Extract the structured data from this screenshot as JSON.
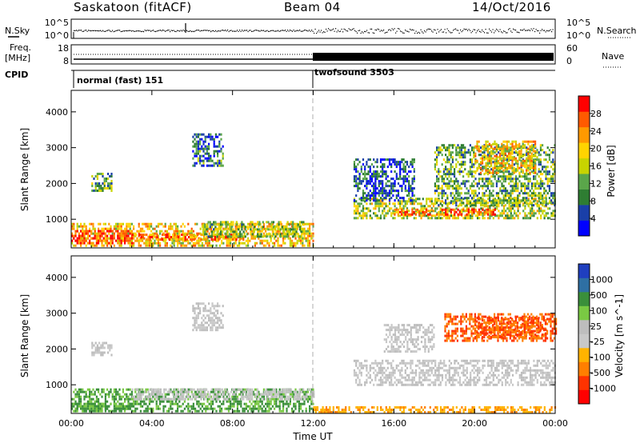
{
  "header": {
    "station": "Saskatoon (fitACF)",
    "beam": "Beam 04",
    "date": "14/Oct/2016"
  },
  "noise_panel": {
    "left_label": "N.Sky",
    "left_ticks": [
      "10^5",
      "10^0"
    ],
    "right_ticks": [
      "10^5",
      "10^0"
    ],
    "right_label": "N.Search"
  },
  "freq_panel": {
    "left_label_1": "Freq.",
    "left_label_2": "[MHz]",
    "left_ticks": [
      "18",
      "8"
    ],
    "right_ticks": [
      "60",
      "0"
    ],
    "right_label": "Nave"
  },
  "cpid": {
    "label": "CPID",
    "modes": [
      {
        "name": "normal (fast) 151",
        "start_hour": 0
      },
      {
        "name": "twofsound 3503",
        "start_hour": 12
      }
    ]
  },
  "colors": {
    "power_scale": [
      "#0000ff",
      "#1a3fa8",
      "#2e7d32",
      "#5aa64a",
      "#c8d400",
      "#ffd400",
      "#ff9900",
      "#ff5a00",
      "#ff0000"
    ],
    "velocity_scale": [
      "#1f3fbf",
      "#2e6fa3",
      "#3a8f3a",
      "#7ac943",
      "#bdbdbd",
      "#c8c8c8",
      "#ffb300",
      "#ff7f00",
      "#ff3300",
      "#ff0000"
    ]
  },
  "chart_data": [
    {
      "type": "heatmap",
      "name": "power",
      "ylabel": "Slant Range [km]",
      "xlabel": "Time UT",
      "x_ticks": [
        "00:00",
        "04:00",
        "08:00",
        "12:00",
        "16:00",
        "20:00",
        "00:00"
      ],
      "x_range_hours": [
        0,
        24
      ],
      "y_ticks": [
        1000,
        2000,
        3000,
        4000
      ],
      "ylim": [
        200,
        4600
      ],
      "colorbar": {
        "label": "Power [dB]",
        "ticks": [
          4,
          8,
          12,
          16,
          20,
          24,
          28
        ],
        "range": [
          0,
          32
        ]
      },
      "regions": [
        {
          "t0": 0.0,
          "t1": 12.0,
          "r0": 250,
          "r1": 900,
          "level": 20
        },
        {
          "t0": 0.0,
          "t1": 3.0,
          "r0": 300,
          "r1": 700,
          "level": 28
        },
        {
          "t0": 3.0,
          "t1": 8.5,
          "r0": 400,
          "r1": 600,
          "level": 24
        },
        {
          "t0": 6.5,
          "t1": 11.5,
          "r0": 500,
          "r1": 950,
          "level": 14
        },
        {
          "t0": 1.0,
          "t1": 2.0,
          "r0": 1800,
          "r1": 2300,
          "level": 12
        },
        {
          "t0": 6.0,
          "t1": 7.5,
          "r0": 2500,
          "r1": 3400,
          "level": 8
        },
        {
          "t0": 14.0,
          "t1": 24.0,
          "r0": 1000,
          "r1": 1600,
          "level": 16
        },
        {
          "t0": 16.0,
          "t1": 21.0,
          "r0": 1100,
          "r1": 1300,
          "level": 26
        },
        {
          "t0": 18.0,
          "t1": 24.0,
          "r0": 1400,
          "r1": 3100,
          "level": 12
        },
        {
          "t0": 20.0,
          "t1": 23.0,
          "r0": 2300,
          "r1": 3200,
          "level": 20
        },
        {
          "t0": 14.0,
          "t1": 17.0,
          "r0": 1500,
          "r1": 2700,
          "level": 6
        }
      ]
    },
    {
      "type": "heatmap",
      "name": "velocity",
      "ylabel": "Slant Range [km]",
      "xlabel": "Time UT",
      "x_ticks": [
        "00:00",
        "04:00",
        "08:00",
        "12:00",
        "16:00",
        "20:00",
        "00:00"
      ],
      "x_range_hours": [
        0,
        24
      ],
      "y_ticks": [
        1000,
        2000,
        3000,
        4000
      ],
      "ylim": [
        200,
        4600
      ],
      "colorbar": {
        "label": "Velocity [m s^-1]",
        "ticks": [
          1000,
          500,
          100,
          25,
          -25,
          -100,
          -500,
          -1000
        ]
      },
      "regions": [
        {
          "t0": 0.0,
          "t1": 12.0,
          "r0": 250,
          "r1": 900,
          "level": 100
        },
        {
          "t0": 0.0,
          "t1": 3.0,
          "r0": 250,
          "r1": 500,
          "level": 100
        },
        {
          "t0": 3.0,
          "t1": 12.0,
          "r0": 600,
          "r1": 900,
          "level": 0
        },
        {
          "t0": 12.0,
          "t1": 24.0,
          "r0": 200,
          "r1": 400,
          "level": -100
        },
        {
          "t0": 14.0,
          "t1": 24.0,
          "r0": 1000,
          "r1": 1700,
          "level": 0
        },
        {
          "t0": 15.5,
          "t1": 18.0,
          "r0": 1900,
          "r1": 2700,
          "level": 0
        },
        {
          "t0": 18.5,
          "t1": 24.0,
          "r0": 2200,
          "r1": 3000,
          "level": -500
        },
        {
          "t0": 20.0,
          "t1": 23.5,
          "r0": 2300,
          "r1": 2900,
          "level": -500
        },
        {
          "t0": 6.0,
          "t1": 7.5,
          "r0": 2500,
          "r1": 3300,
          "level": 0
        },
        {
          "t0": 1.0,
          "t1": 2.0,
          "r0": 1800,
          "r1": 2200,
          "level": 0
        }
      ]
    }
  ]
}
